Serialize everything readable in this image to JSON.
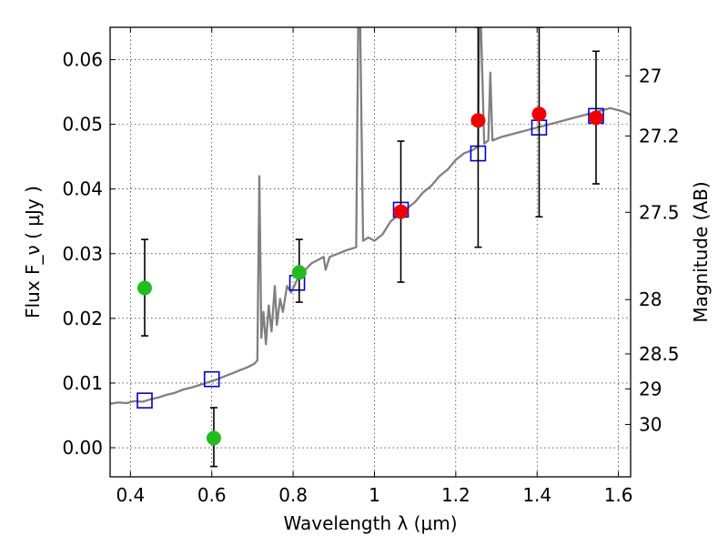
{
  "chart_data": {
    "type": "scatter",
    "xlabel": "Wavelength  λ (μm)",
    "ylabel": "Flux  F_ν  ( μJy )",
    "ylabel_right": "Magnitude (AB)",
    "xlim": [
      0.35,
      1.63
    ],
    "ylim": [
      -0.0045,
      0.065
    ],
    "grid": true,
    "x_ticks": [
      0.4,
      0.6,
      0.8,
      1.0,
      1.2,
      1.4,
      1.6
    ],
    "x_tick_labels": [
      "0.4",
      "0.6",
      "0.8",
      "1",
      "1.2",
      "1.4",
      "1.6"
    ],
    "y_ticks": [
      0.0,
      0.01,
      0.02,
      0.03,
      0.04,
      0.05,
      0.06
    ],
    "y_tick_labels": [
      "0.00",
      "0.01",
      "0.02",
      "0.03",
      "0.04",
      "0.05",
      "0.06"
    ],
    "right_ticks": [
      {
        "flux": 0.0575,
        "label": "27"
      },
      {
        "flux": 0.0482,
        "label": "27.2"
      },
      {
        "flux": 0.0364,
        "label": "27.5"
      },
      {
        "flux": 0.0229,
        "label": "28"
      },
      {
        "flux": 0.0145,
        "label": "28.5"
      },
      {
        "flux": 0.0091,
        "label": "29"
      },
      {
        "flux": 0.0036,
        "label": "30"
      }
    ],
    "series": [
      {
        "kind": "line",
        "color": "#808080",
        "points": [
          [
            0.35,
            0.0068
          ],
          [
            0.37,
            0.007
          ],
          [
            0.39,
            0.0069
          ],
          [
            0.41,
            0.0072
          ],
          [
            0.43,
            0.0071
          ],
          [
            0.45,
            0.0075
          ],
          [
            0.47,
            0.0078
          ],
          [
            0.49,
            0.0082
          ],
          [
            0.51,
            0.0085
          ],
          [
            0.53,
            0.009
          ],
          [
            0.55,
            0.0093
          ],
          [
            0.57,
            0.0097
          ],
          [
            0.59,
            0.0101
          ],
          [
            0.61,
            0.0105
          ],
          [
            0.63,
            0.011
          ],
          [
            0.65,
            0.0115
          ],
          [
            0.67,
            0.012
          ],
          [
            0.69,
            0.0125
          ],
          [
            0.705,
            0.013
          ],
          [
            0.712,
            0.0135
          ],
          [
            0.717,
            0.042
          ],
          [
            0.722,
            0.017
          ],
          [
            0.727,
            0.021
          ],
          [
            0.733,
            0.016
          ],
          [
            0.74,
            0.022
          ],
          [
            0.747,
            0.018
          ],
          [
            0.755,
            0.025
          ],
          [
            0.76,
            0.019
          ],
          [
            0.768,
            0.023
          ],
          [
            0.775,
            0.021
          ],
          [
            0.785,
            0.025
          ],
          [
            0.795,
            0.024
          ],
          [
            0.81,
            0.026
          ],
          [
            0.82,
            0.027
          ],
          [
            0.83,
            0.0275
          ],
          [
            0.845,
            0.0285
          ],
          [
            0.86,
            0.029
          ],
          [
            0.875,
            0.0295
          ],
          [
            0.88,
            0.0275
          ],
          [
            0.89,
            0.0295
          ],
          [
            0.91,
            0.03
          ],
          [
            0.93,
            0.0305
          ],
          [
            0.955,
            0.031
          ],
          [
            0.96,
            0.065
          ],
          [
            0.965,
            0.065
          ],
          [
            0.972,
            0.032
          ],
          [
            0.985,
            0.0325
          ],
          [
            1.0,
            0.032
          ],
          [
            1.02,
            0.033
          ],
          [
            1.04,
            0.035
          ],
          [
            1.06,
            0.036
          ],
          [
            1.08,
            0.037
          ],
          [
            1.1,
            0.038
          ],
          [
            1.12,
            0.0395
          ],
          [
            1.14,
            0.0405
          ],
          [
            1.16,
            0.042
          ],
          [
            1.18,
            0.043
          ],
          [
            1.2,
            0.0445
          ],
          [
            1.22,
            0.0455
          ],
          [
            1.24,
            0.046
          ],
          [
            1.255,
            0.0465
          ],
          [
            1.258,
            0.065
          ],
          [
            1.262,
            0.065
          ],
          [
            1.27,
            0.047
          ],
          [
            1.28,
            0.0475
          ],
          [
            1.285,
            0.058
          ],
          [
            1.29,
            0.0475
          ],
          [
            1.31,
            0.048
          ],
          [
            1.34,
            0.0485
          ],
          [
            1.37,
            0.049
          ],
          [
            1.4,
            0.0495
          ],
          [
            1.43,
            0.05
          ],
          [
            1.46,
            0.0505
          ],
          [
            1.49,
            0.051
          ],
          [
            1.52,
            0.0515
          ],
          [
            1.55,
            0.052
          ],
          [
            1.58,
            0.0525
          ],
          [
            1.61,
            0.052
          ],
          [
            1.63,
            0.0515
          ]
        ]
      },
      {
        "kind": "square",
        "color": "#0000cc",
        "points": [
          [
            0.435,
            0.0073
          ],
          [
            0.6,
            0.0106
          ],
          [
            0.81,
            0.0255
          ],
          [
            1.065,
            0.0368
          ],
          [
            1.255,
            0.0455
          ],
          [
            1.405,
            0.0495
          ],
          [
            1.545,
            0.0513
          ]
        ]
      },
      {
        "kind": "circle",
        "color": "#22bb22",
        "points": [
          [
            0.435,
            0.0247
          ],
          [
            0.605,
            0.0015
          ],
          [
            0.815,
            0.0271
          ]
        ]
      },
      {
        "kind": "circle",
        "color": "#ee0000",
        "points": [
          [
            1.065,
            0.0365
          ],
          [
            1.255,
            0.0506
          ],
          [
            1.405,
            0.0516
          ],
          [
            1.545,
            0.051
          ]
        ]
      },
      {
        "kind": "errorbar",
        "color": "#000000",
        "points": [
          [
            0.435,
            0.0173,
            0.0322
          ],
          [
            0.605,
            -0.0029,
            0.0062
          ],
          [
            0.815,
            0.0225,
            0.0322
          ],
          [
            1.065,
            0.0256,
            0.0474
          ],
          [
            1.255,
            0.031,
            0.065
          ],
          [
            1.405,
            0.0357,
            0.065
          ],
          [
            1.545,
            0.0408,
            0.0613
          ]
        ]
      }
    ]
  }
}
